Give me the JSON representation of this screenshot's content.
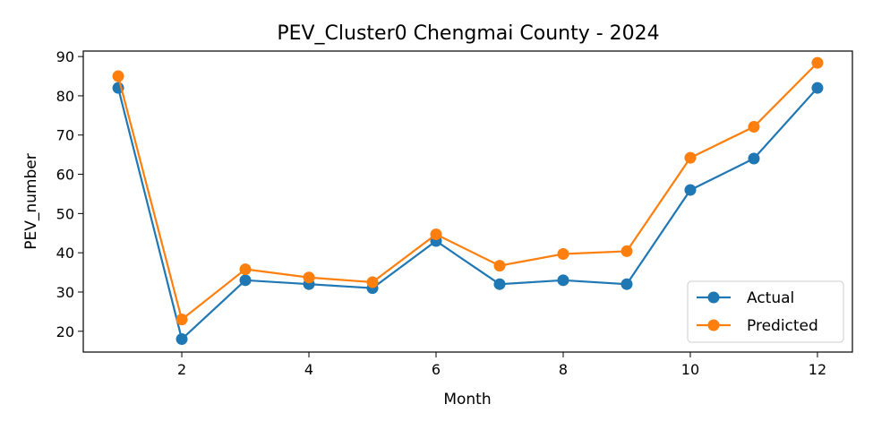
{
  "chart_data": {
    "type": "line",
    "title": "PEV_Cluster0 Chengmai County - 2024",
    "xlabel": "Month",
    "ylabel": "PEV_number",
    "x": [
      1,
      2,
      3,
      4,
      5,
      6,
      7,
      8,
      9,
      10,
      11,
      12
    ],
    "xlim": [
      0.45,
      12.55
    ],
    "ylim": [
      14.7,
      91.4
    ],
    "xticks": [
      2,
      4,
      6,
      8,
      10,
      12
    ],
    "yticks": [
      20,
      30,
      40,
      50,
      60,
      70,
      80,
      90
    ],
    "grid": false,
    "legend_position": "lower-right",
    "series": [
      {
        "name": "Actual",
        "color": "#1f77b4",
        "marker": "circle",
        "values": [
          82,
          18,
          33,
          32,
          31,
          43,
          32,
          33,
          32,
          56,
          64,
          82
        ]
      },
      {
        "name": "Predicted",
        "color": "#ff7f0e",
        "marker": "circle",
        "values": [
          85,
          23,
          35.8,
          33.7,
          32.5,
          44.7,
          36.7,
          39.7,
          40.4,
          64.2,
          72.1,
          88.4
        ]
      }
    ]
  }
}
